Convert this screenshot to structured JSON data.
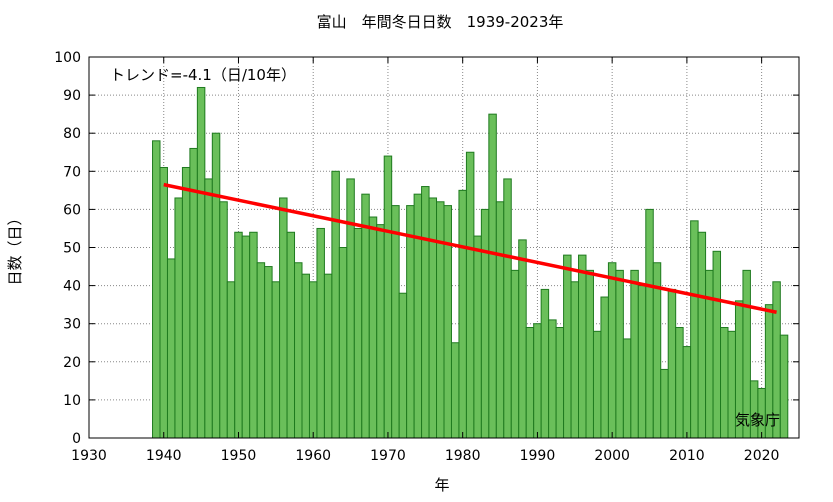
{
  "chart_data": {
    "type": "bar",
    "title": "富山　年間冬日日数　1939-2023年",
    "xlabel": "年",
    "ylabel": "日数（日）",
    "trend_label": "トレンド=-4.1（日/10年）",
    "credit": "気象庁",
    "xlim": [
      1930,
      2025
    ],
    "ylim": [
      0,
      100
    ],
    "x_ticks": [
      1930,
      1940,
      1950,
      1960,
      1970,
      1980,
      1990,
      2000,
      2010,
      2020
    ],
    "y_ticks": [
      0,
      10,
      20,
      30,
      40,
      50,
      60,
      70,
      80,
      90,
      100
    ],
    "grid": true,
    "bar_color": "#6abf5a",
    "bar_edge_color": "#1f7a1f",
    "trend_color": "#ff0000",
    "years": [
      1939,
      1940,
      1941,
      1942,
      1943,
      1944,
      1945,
      1946,
      1947,
      1948,
      1949,
      1950,
      1951,
      1952,
      1953,
      1954,
      1955,
      1956,
      1957,
      1958,
      1959,
      1960,
      1961,
      1962,
      1963,
      1964,
      1965,
      1966,
      1967,
      1968,
      1969,
      1970,
      1971,
      1972,
      1973,
      1974,
      1975,
      1976,
      1977,
      1978,
      1979,
      1980,
      1981,
      1982,
      1983,
      1984,
      1985,
      1986,
      1987,
      1988,
      1989,
      1990,
      1991,
      1992,
      1993,
      1994,
      1995,
      1996,
      1997,
      1998,
      1999,
      2000,
      2001,
      2002,
      2003,
      2004,
      2005,
      2006,
      2007,
      2008,
      2009,
      2010,
      2011,
      2012,
      2013,
      2014,
      2015,
      2016,
      2017,
      2018,
      2019,
      2020,
      2021,
      2022,
      2023
    ],
    "values": [
      78,
      71,
      47,
      63,
      71,
      76,
      92,
      68,
      80,
      62,
      41,
      54,
      53,
      54,
      46,
      45,
      41,
      63,
      54,
      46,
      43,
      41,
      55,
      43,
      70,
      50,
      68,
      55,
      64,
      58,
      56,
      74,
      61,
      38,
      61,
      64,
      66,
      63,
      62,
      61,
      25,
      65,
      75,
      53,
      60,
      85,
      62,
      68,
      44,
      52,
      29,
      30,
      39,
      31,
      29,
      48,
      41,
      48,
      44,
      28,
      37,
      46,
      44,
      26,
      44,
      40,
      60,
      46,
      18,
      39,
      29,
      24,
      57,
      54,
      44,
      49,
      29,
      28,
      36,
      44,
      15,
      13,
      35,
      41,
      27
    ],
    "trend": {
      "x": [
        1940,
        2022
      ],
      "y": [
        66.5,
        33.0
      ]
    }
  }
}
